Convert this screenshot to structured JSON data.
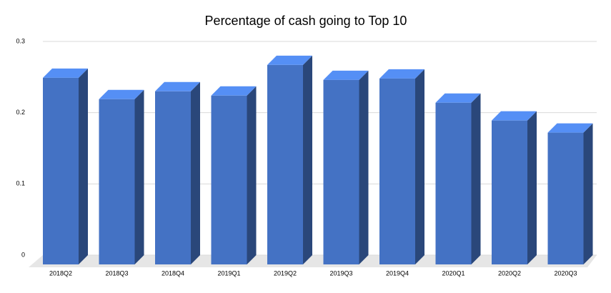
{
  "chart_data": {
    "type": "bar3d",
    "title": "Percentage of cash going to Top 10",
    "categories": [
      "2018Q2",
      "2018Q3",
      "2018Q4",
      "2019Q1",
      "2019Q2",
      "2019Q3",
      "2019Q4",
      "2020Q1",
      "2020Q2",
      "2020Q3"
    ],
    "values": [
      0.262,
      0.232,
      0.243,
      0.237,
      0.28,
      0.259,
      0.261,
      0.227,
      0.202,
      0.185
    ],
    "color": "#4472c4",
    "ylim": [
      0,
      0.3
    ],
    "yticks": [
      0,
      0.1,
      0.2,
      0.3
    ],
    "grid": true
  }
}
